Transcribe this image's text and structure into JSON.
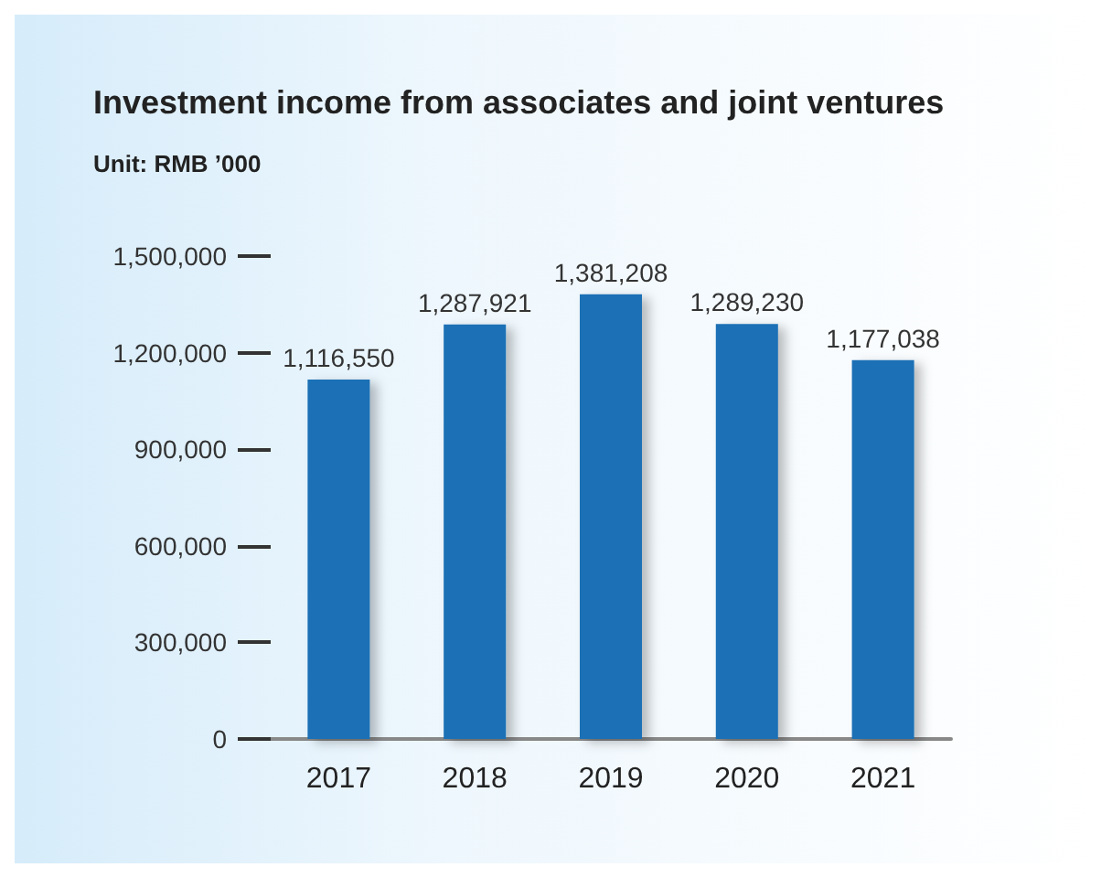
{
  "chart_data": {
    "type": "bar",
    "title": "Investment income from associates and joint ventures",
    "subtitle": "Unit: RMB ’000",
    "categories": [
      "2017",
      "2018",
      "2019",
      "2020",
      "2021"
    ],
    "values": [
      1116550,
      1287921,
      1381208,
      1289230,
      1177038
    ],
    "value_labels": [
      "1,116,550",
      "1,287,921",
      "1,381,208",
      "1,289,230",
      "1,177,038"
    ],
    "color": "#1a6fb5",
    "ylim": [
      0,
      1500000
    ],
    "yticks": [
      {
        "value": 0,
        "label": "0"
      },
      {
        "value": 300000,
        "label": "300,000"
      },
      {
        "value": 600000,
        "label": "600,000"
      },
      {
        "value": 900000,
        "label": "900,000"
      },
      {
        "value": 1200000,
        "label": "1,200,000"
      },
      {
        "value": 1500000,
        "label": "1,500,000"
      }
    ],
    "grid": false
  }
}
